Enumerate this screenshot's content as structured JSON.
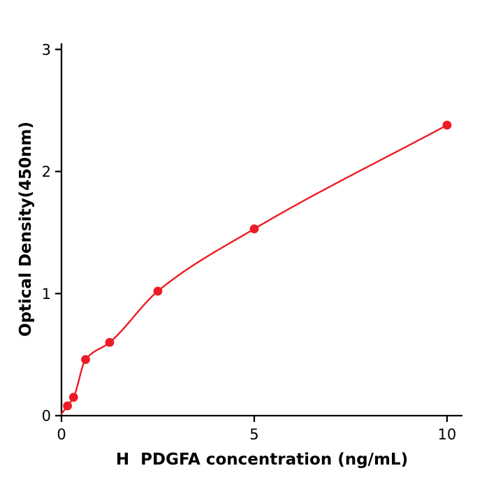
{
  "chart_data": {
    "type": "scatter",
    "title": "",
    "xlabel": "H  PDGFA concentration (ng/mL)",
    "ylabel": "Optical Density(450nm)",
    "x": [
      0.156,
      0.313,
      0.625,
      1.25,
      2.5,
      5,
      10
    ],
    "y": [
      0.08,
      0.15,
      0.46,
      0.6,
      1.02,
      1.53,
      2.38
    ],
    "curve_start": {
      "x": 0,
      "y": 0.015
    },
    "xlim": [
      0,
      10.4
    ],
    "ylim": [
      0,
      3.05
    ],
    "xticks": [
      0,
      5,
      10
    ],
    "yticks": [
      0,
      1,
      2,
      3
    ],
    "marker_color": "#ed1c24",
    "line_color": "#ed1c24",
    "axis_color": "#000000",
    "grid": false,
    "legend_position": "none"
  }
}
